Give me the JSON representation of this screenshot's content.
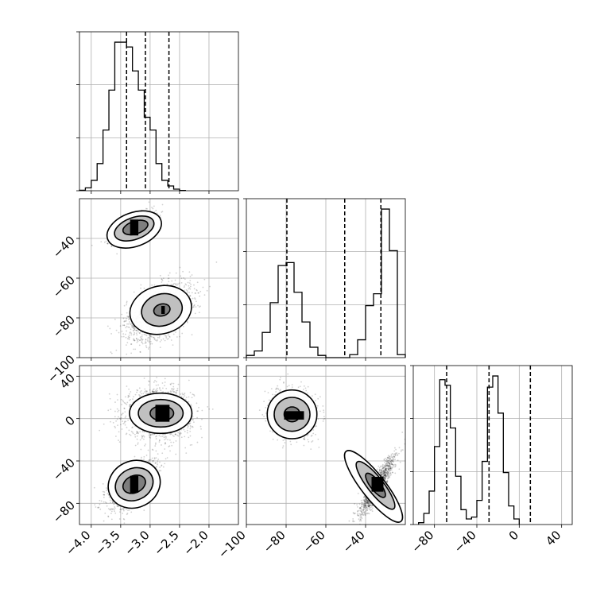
{
  "chart_data": {
    "type": "corner",
    "grid": true,
    "parameters": [
      {
        "axis_range": [
          -4.2,
          -1.5
        ],
        "ticks": [
          -4.0,
          -3.5,
          -3.0,
          -2.5,
          -2.0
        ],
        "tick_labels": [
          "−4.0",
          "−3.5",
          "−3.0",
          "−2.5",
          "−2.0"
        ],
        "histogram": {
          "bin_start": -4.2,
          "bin_width": 0.1,
          "counts": [
            0.3,
            1.8,
            6.5,
            17,
            38,
            63,
            93,
            93,
            90,
            75,
            63,
            46,
            38,
            17,
            6.5,
            3.0,
            1.0,
            0.2
          ],
          "quantile_lines": [
            -3.4,
            -3.08,
            -2.68
          ]
        }
      },
      {
        "axis_range": [
          -100,
          -20
        ],
        "ticks": [
          -100,
          -80,
          -60,
          -40
        ],
        "tick_labels": [
          "−100",
          "−80",
          "−60",
          "−40"
        ],
        "histogram": {
          "bin_start": -100,
          "bin_width": 4,
          "counts": [
            1.5,
            4.5,
            17,
            37,
            62,
            64,
            44,
            24,
            7,
            1.5,
            0,
            0,
            0,
            2,
            12,
            35,
            43,
            100,
            72,
            2
          ],
          "quantile_lines": [
            -79.6,
            -50.5,
            -32.3
          ]
        }
      },
      {
        "axis_range": [
          -100,
          50
        ],
        "ticks": [
          -80,
          -40,
          0,
          40
        ],
        "tick_labels": [
          "−80",
          "−40",
          "0",
          "40"
        ],
        "histogram": {
          "bin_start": -95,
          "bin_width": 5,
          "counts": [
            1,
            6,
            18,
            42,
            78,
            75,
            52,
            26,
            8,
            3,
            4,
            13,
            34,
            74,
            80,
            60,
            28,
            10,
            3
          ],
          "quantile_lines": [
            -68.5,
            -28.5,
            10.5
          ]
        }
      }
    ],
    "pairs": [
      {
        "row": 1,
        "col": 0,
        "clusters": [
          {
            "center": [
              -3.3,
              -34
            ],
            "sigma": [
              0.17,
              3.5
            ],
            "corr": 0.75,
            "n": 1100
          },
          {
            "center": [
              -2.85,
              -77
            ],
            "sigma": [
              0.27,
              7
            ],
            "corr": 0.45,
            "n": 1700
          }
        ],
        "contours": [
          {
            "center": [
              -3.27,
              -35.5
            ],
            "radius": [
              0.48,
              8.5
            ],
            "angle_deg": 20
          },
          {
            "center": [
              -3.27,
              -35
            ],
            "radius": [
              0.35,
              5.5
            ],
            "angle_deg": 20
          },
          {
            "center": [
              -3.25,
              -34.5
            ],
            "radius": [
              0.22,
              3.2
            ],
            "angle_deg": 18
          },
          {
            "center": [
              -2.82,
              -76
            ],
            "radius": [
              0.53,
              12
            ],
            "angle_deg": 15
          },
          {
            "center": [
              -2.8,
              -76
            ],
            "radius": [
              0.35,
              8
            ],
            "angle_deg": 15
          },
          {
            "center": [
              -2.8,
              -76
            ],
            "radius": [
              0.14,
              3
            ],
            "angle_deg": 15
          }
        ],
        "peaks": [
          {
            "center": [
              -3.27,
              -34.5
            ],
            "size": [
              0.07,
              4
            ]
          },
          {
            "center": [
              -2.78,
              -76
            ],
            "size": [
              0.03,
              2
            ]
          }
        ]
      },
      {
        "row": 2,
        "col": 0,
        "clusters": [
          {
            "center": [
              -2.85,
              5
            ],
            "sigma": [
              0.28,
              11
            ],
            "corr": 0.0,
            "n": 1700
          },
          {
            "center": [
              -3.3,
              -63
            ],
            "sigma": [
              0.2,
              11
            ],
            "corr": 0.6,
            "n": 1200
          }
        ],
        "contours": [
          {
            "center": [
              -2.82,
              5
            ],
            "radius": [
              0.53,
              19
            ],
            "angle_deg": 0
          },
          {
            "center": [
              -2.82,
              5
            ],
            "radius": [
              0.38,
              13
            ],
            "angle_deg": 0
          },
          {
            "center": [
              -2.8,
              5
            ],
            "radius": [
              0.2,
              7
            ],
            "angle_deg": 0
          },
          {
            "center": [
              -3.27,
              -62
            ],
            "radius": [
              0.45,
              22
            ],
            "angle_deg": 25
          },
          {
            "center": [
              -3.27,
              -62
            ],
            "radius": [
              0.33,
              15
            ],
            "angle_deg": 25
          },
          {
            "center": [
              -3.27,
              -62
            ],
            "radius": [
              0.2,
              8
            ],
            "angle_deg": 25
          }
        ],
        "peaks": [
          {
            "center": [
              -2.79,
              5
            ],
            "size": [
              0.12,
              8
            ]
          },
          {
            "center": [
              -3.27,
              -62
            ],
            "size": [
              0.07,
              8
            ]
          }
        ]
      },
      {
        "row": 2,
        "col": 1,
        "clusters": [
          {
            "center": [
              -77,
              4
            ],
            "sigma": [
              5,
              10
            ],
            "corr": -0.1,
            "n": 1700
          },
          {
            "center": [
              -34,
              -63
            ],
            "sigma": [
              4.5,
              14
            ],
            "corr": 0.9,
            "n": 1200
          }
        ],
        "contours": [
          {
            "center": [
              -77,
              4
            ],
            "radius": [
              12.5,
              23
            ],
            "angle_deg": 0
          },
          {
            "center": [
              -77,
              4
            ],
            "radius": [
              9,
              16
            ],
            "angle_deg": 0
          },
          {
            "center": [
              -77,
              4
            ],
            "radius": [
              4,
              7
            ],
            "angle_deg": 0
          },
          {
            "center": [
              -36,
              -64
            ],
            "radius": [
              6,
              42
            ],
            "angle_deg": 38
          },
          {
            "center": [
              -35,
              -63
            ],
            "radius": [
              4,
              28
            ],
            "angle_deg": 38
          },
          {
            "center": [
              -35,
              -63
            ],
            "radius": [
              2.5,
              14
            ],
            "angle_deg": 38
          }
        ],
        "peaks": [
          {
            "center": [
              -76,
              3
            ],
            "size": [
              5,
              4
            ]
          },
          {
            "center": [
              -34,
              -62
            ],
            "size": [
              3,
              7
            ]
          }
        ]
      }
    ]
  }
}
